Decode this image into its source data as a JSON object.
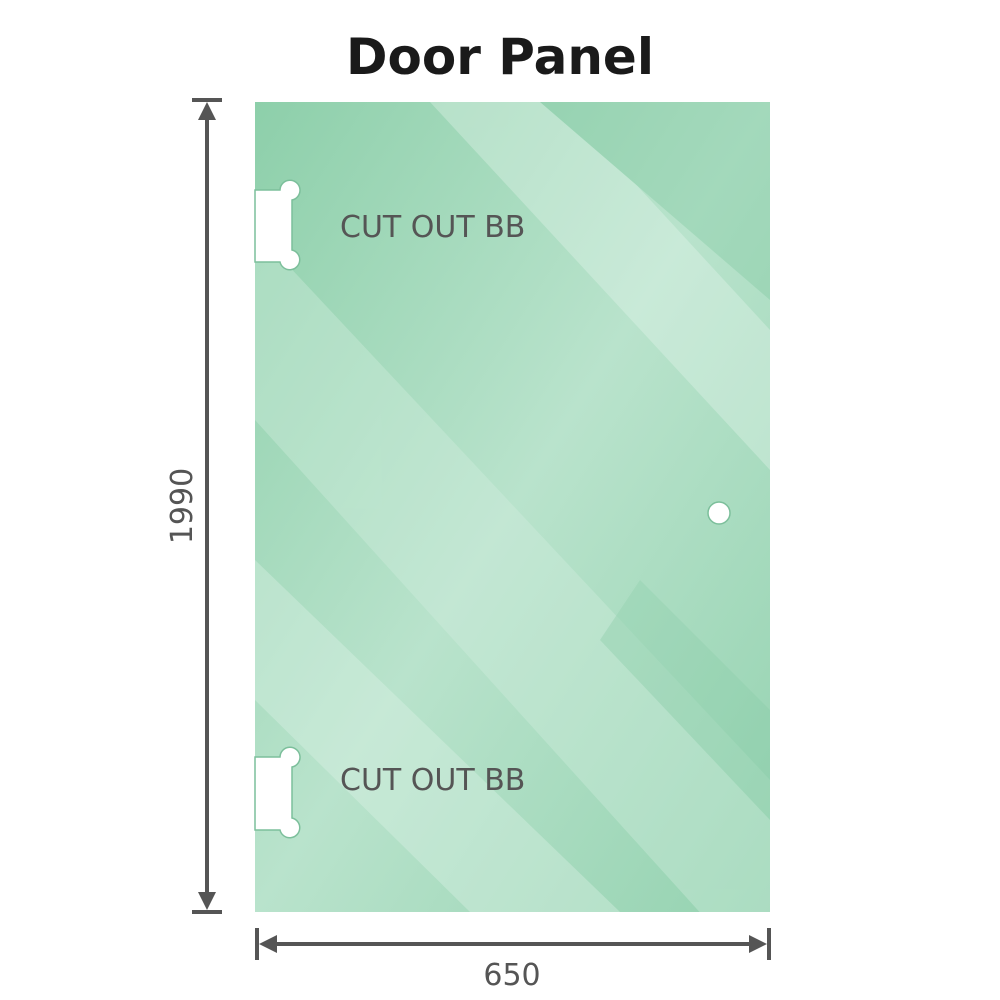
{
  "title": "Door Panel",
  "dimensions": {
    "height": "1990",
    "width": "650"
  },
  "cutouts": [
    {
      "label": "CUT OUT BB"
    },
    {
      "label": "CUT OUT BB"
    }
  ],
  "colors": {
    "glass": "#8fd0ad",
    "glass_light": "#bfe6d2",
    "dimension_line": "#555555",
    "text": "#555555"
  }
}
